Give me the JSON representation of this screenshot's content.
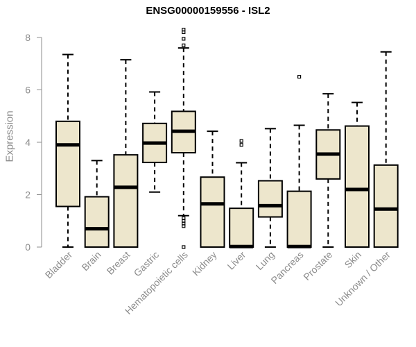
{
  "chart_data": {
    "type": "boxplot",
    "title": "ENSG00000159556 - ISL2",
    "xlabel": "",
    "ylabel": "Expression",
    "ylim": [
      0,
      8.2
    ],
    "yticks": [
      0,
      2,
      4,
      6,
      8
    ],
    "grid": false,
    "box_color": "#ede6cc",
    "line_color": "#000000",
    "axis_color": "#8c8c8c",
    "categories": [
      "Bladder",
      "Brain",
      "Breast",
      "Gastric",
      "Hematopoietic cells",
      "Kidney",
      "Liver",
      "Lung",
      "Pancreas",
      "Prostate",
      "Skin",
      "Unknown / Other"
    ],
    "boxes": [
      {
        "name": "Bladder",
        "whisker_low": 0,
        "q1": 1.55,
        "median": 3.9,
        "q3": 4.8,
        "whisker_high": 7.35,
        "outliers": []
      },
      {
        "name": "Brain",
        "whisker_low": 0,
        "q1": 0,
        "median": 0.7,
        "q3": 1.92,
        "whisker_high": 3.3,
        "outliers": []
      },
      {
        "name": "Breast",
        "whisker_low": 0,
        "q1": 0,
        "median": 2.28,
        "q3": 3.52,
        "whisker_high": 7.15,
        "outliers": []
      },
      {
        "name": "Gastric",
        "whisker_low": 2.1,
        "q1": 3.23,
        "median": 3.97,
        "q3": 4.72,
        "whisker_high": 5.92,
        "outliers": []
      },
      {
        "name": "Hematopoietic cells",
        "whisker_low": 1.2,
        "q1": 3.6,
        "median": 4.42,
        "q3": 5.18,
        "whisker_high": 7.6,
        "outliers": [
          0,
          0.8,
          0.9,
          1.0,
          1.1,
          7.7,
          7.95,
          8.2,
          8.3
        ]
      },
      {
        "name": "Kidney",
        "whisker_low": 0,
        "q1": 0,
        "median": 1.65,
        "q3": 2.67,
        "whisker_high": 4.42,
        "outliers": []
      },
      {
        "name": "Liver",
        "whisker_low": 0,
        "q1": 0,
        "median": 0.02,
        "q3": 1.48,
        "whisker_high": 3.22,
        "outliers": [
          3.9,
          4.05
        ]
      },
      {
        "name": "Lung",
        "whisker_low": 0,
        "q1": 1.15,
        "median": 1.58,
        "q3": 2.53,
        "whisker_high": 4.52,
        "outliers": []
      },
      {
        "name": "Pancreas",
        "whisker_low": 0,
        "q1": 0,
        "median": 0.02,
        "q3": 2.13,
        "whisker_high": 4.65,
        "outliers": [
          6.5
        ]
      },
      {
        "name": "Prostate",
        "whisker_low": 0,
        "q1": 2.6,
        "median": 3.55,
        "q3": 4.47,
        "whisker_high": 5.85,
        "outliers": []
      },
      {
        "name": "Skin",
        "whisker_low": 0,
        "q1": 0,
        "median": 2.2,
        "q3": 4.62,
        "whisker_high": 5.52,
        "outliers": []
      },
      {
        "name": "Unknown / Other",
        "whisker_low": 0,
        "q1": 0,
        "median": 1.45,
        "q3": 3.13,
        "whisker_high": 7.45,
        "outliers": []
      }
    ]
  }
}
